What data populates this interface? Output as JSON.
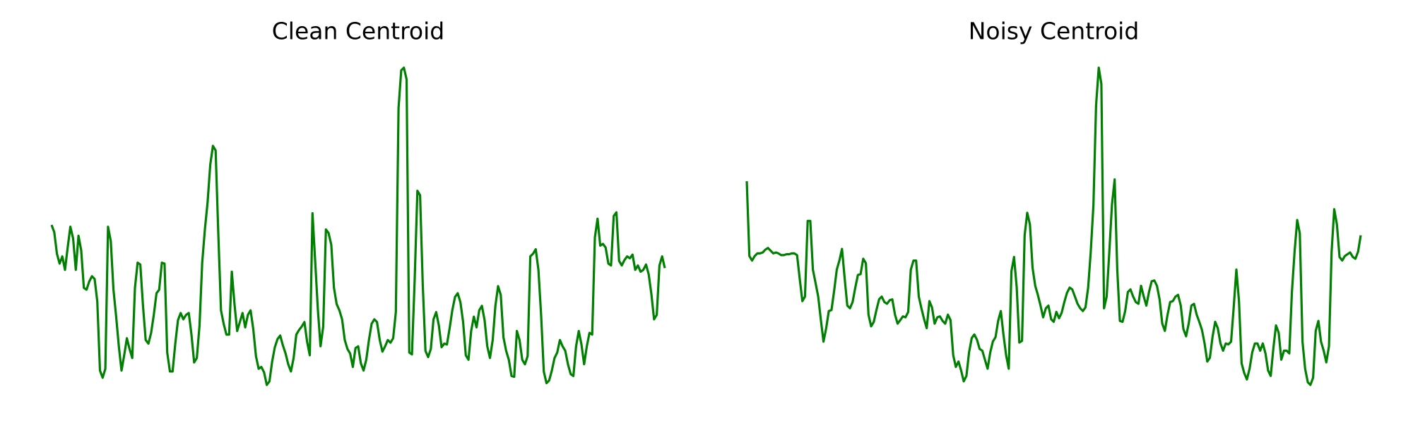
{
  "chart_data": [
    {
      "type": "line",
      "title": "Clean Centroid",
      "color": "#008000",
      "values": [
        180,
        172,
        148,
        137,
        145,
        130,
        155,
        178,
        165,
        130,
        168,
        152,
        110,
        108,
        117,
        123,
        120,
        95,
        18,
        10,
        20,
        178,
        162,
        108,
        78,
        45,
        18,
        35,
        54,
        42,
        32,
        110,
        138,
        136,
        90,
        52,
        48,
        60,
        80,
        104,
        108,
        138,
        137,
        38,
        17,
        17,
        48,
        74,
        82,
        75,
        80,
        82,
        58,
        27,
        32,
        68,
        138,
        175,
        205,
        247,
        268,
        263,
        170,
        85,
        70,
        58,
        58,
        128,
        92,
        62,
        72,
        82,
        66,
        80,
        85,
        64,
        34,
        20,
        22,
        16,
        2,
        6,
        28,
        44,
        53,
        57,
        46,
        37,
        25,
        17,
        32,
        58,
        63,
        67,
        72,
        50,
        35,
        193,
        140,
        86,
        45,
        67,
        175,
        171,
        158,
        110,
        92,
        85,
        75,
        52,
        42,
        37,
        22,
        43,
        45,
        26,
        18,
        30,
        52,
        70,
        75,
        72,
        52,
        39,
        45,
        52,
        49,
        54,
        83,
        310,
        352,
        355,
        342,
        38,
        36,
        118,
        218,
        213,
        113,
        40,
        33,
        42,
        75,
        83,
        68,
        44,
        48,
        47,
        65,
        85,
        100,
        104,
        94,
        72,
        35,
        30,
        62,
        78,
        66,
        85,
        90,
        74,
        45,
        32,
        52,
        90,
        112,
        102,
        55,
        40,
        30,
        12,
        11,
        62,
        52,
        30,
        25,
        34,
        145,
        148,
        153,
        130,
        80,
        17,
        4,
        7,
        18,
        32,
        38,
        52,
        45,
        40,
        25,
        14,
        12,
        45,
        62,
        47,
        25,
        45,
        60,
        58,
        166,
        187,
        157,
        159,
        155,
        137,
        135,
        190,
        194,
        140,
        135,
        141,
        145,
        143,
        147,
        130,
        135,
        128,
        130,
        136,
        125,
        103,
        75,
        80,
        135,
        145,
        132
      ]
    },
    {
      "type": "line",
      "title": "Noisy Centroid",
      "color": "#008000",
      "values": [
        228,
        145,
        140,
        145,
        148,
        148,
        149,
        152,
        154,
        151,
        148,
        149,
        148,
        146,
        146,
        147,
        147,
        148,
        148,
        146,
        120,
        95,
        100,
        184,
        184,
        130,
        115,
        100,
        74,
        50,
        65,
        84,
        85,
        106,
        130,
        140,
        153,
        120,
        90,
        87,
        94,
        110,
        124,
        125,
        142,
        137,
        80,
        67,
        72,
        85,
        97,
        100,
        94,
        92,
        96,
        97,
        80,
        70,
        74,
        78,
        77,
        83,
        130,
        140,
        140,
        100,
        87,
        75,
        65,
        95,
        88,
        70,
        77,
        78,
        73,
        70,
        80,
        74,
        35,
        22,
        28,
        18,
        6,
        12,
        38,
        54,
        58,
        52,
        42,
        40,
        30,
        20,
        38,
        50,
        55,
        73,
        84,
        58,
        35,
        20,
        128,
        144,
        110,
        49,
        51,
        168,
        193,
        180,
        132,
        112,
        102,
        90,
        77,
        87,
        90,
        75,
        72,
        83,
        76,
        82,
        94,
        104,
        110,
        108,
        100,
        92,
        87,
        84,
        88,
        110,
        150,
        202,
        312,
        354,
        336,
        87,
        100,
        150,
        202,
        230,
        130,
        73,
        72,
        84,
        105,
        108,
        100,
        94,
        92,
        112,
        100,
        90,
        105,
        117,
        118,
        112,
        97,
        70,
        62,
        80,
        94,
        95,
        100,
        102,
        90,
        64,
        56,
        70,
        90,
        92,
        80,
        72,
        63,
        48,
        28,
        32,
        55,
        72,
        65,
        48,
        40,
        48,
        47,
        50,
        88,
        130,
        95,
        26,
        15,
        8,
        20,
        38,
        48,
        48,
        40,
        48,
        37,
        18,
        12,
        43,
        68,
        60,
        30,
        40,
        40,
        37,
        105,
        150,
        185,
        170,
        50,
        20,
        5,
        2,
        10,
        62,
        73,
        50,
        40,
        27,
        45,
        150,
        197,
        180,
        144,
        140,
        145,
        147,
        149,
        144,
        142,
        150,
        168
      ]
    }
  ]
}
